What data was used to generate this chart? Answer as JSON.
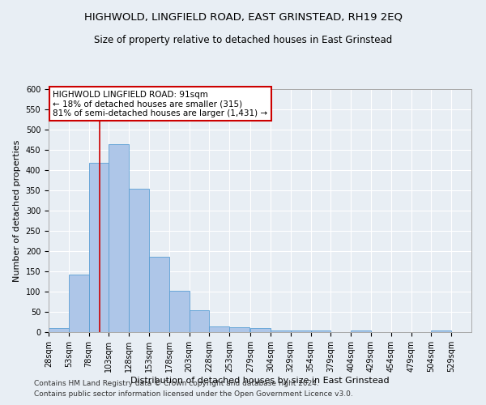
{
  "title": "HIGHWOLD, LINGFIELD ROAD, EAST GRINSTEAD, RH19 2EQ",
  "subtitle": "Size of property relative to detached houses in East Grinstead",
  "xlabel": "Distribution of detached houses by size in East Grinstead",
  "ylabel": "Number of detached properties",
  "footnote1": "Contains HM Land Registry data © Crown copyright and database right 2024.",
  "footnote2": "Contains public sector information licensed under the Open Government Licence v3.0.",
  "annotation_title": "HIGHWOLD LINGFIELD ROAD: 91sqm",
  "annotation_line1": "← 18% of detached houses are smaller (315)",
  "annotation_line2": "81% of semi-detached houses are larger (1,431) →",
  "bar_color": "#aec6e8",
  "bar_edge_color": "#5a9fd4",
  "vline_color": "#cc0000",
  "vline_x": 91,
  "bin_edges": [
    28,
    53,
    78,
    103,
    128,
    153,
    178,
    203,
    228,
    253,
    279,
    304,
    329,
    354,
    379,
    404,
    429,
    454,
    479,
    504,
    529
  ],
  "bar_heights": [
    10,
    143,
    418,
    465,
    355,
    186,
    103,
    54,
    15,
    13,
    10,
    5,
    5,
    5,
    1,
    5,
    0,
    0,
    0,
    5
  ],
  "xlim": [
    28,
    554
  ],
  "ylim": [
    0,
    600
  ],
  "yticks": [
    0,
    50,
    100,
    150,
    200,
    250,
    300,
    350,
    400,
    450,
    500,
    550,
    600
  ],
  "bg_color": "#e8eef4",
  "plot_bg_color": "#e8eef4",
  "grid_color": "#ffffff",
  "title_fontsize": 9.5,
  "subtitle_fontsize": 8.5,
  "xlabel_fontsize": 8,
  "ylabel_fontsize": 8,
  "tick_fontsize": 7,
  "annot_fontsize": 7.5,
  "footnote_fontsize": 6.5
}
